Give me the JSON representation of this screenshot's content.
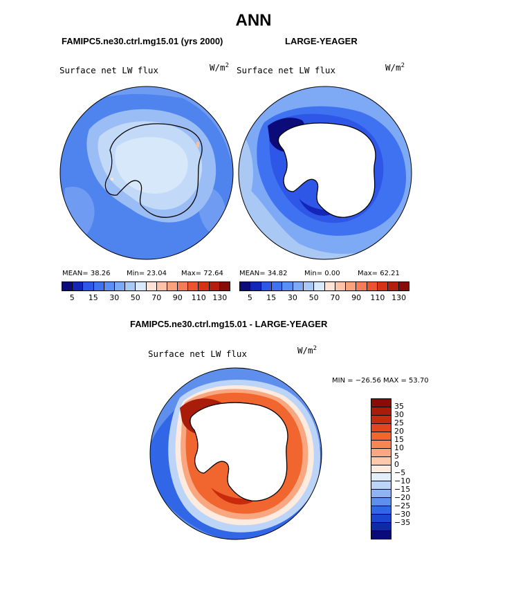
{
  "figure": {
    "title": "ANN",
    "panels": [
      {
        "case": "FAMIPC5.ne30.ctrl.mg15.01 (yrs 2000)",
        "variable": "Surface net LW flux",
        "units": "W/m",
        "units_sup": "2",
        "stats": {
          "mean": "MEAN=  38.26",
          "min": "Min=  23.04",
          "max": "Max=  72.64"
        }
      },
      {
        "case": "LARGE-YEAGER",
        "variable": "Surface net LW flux",
        "units": "W/m",
        "units_sup": "2",
        "stats": {
          "mean": "MEAN=  34.82",
          "min": "Min=   0.00",
          "max": "Max=  62.21"
        }
      }
    ],
    "diff_panel": {
      "case": "FAMIPC5.ne30.ctrl.mg15.01 - LARGE-YEAGER",
      "variable": "Surface net LW flux",
      "units": "W/m",
      "units_sup": "2",
      "minmax": "MIN = −26.56 MAX =  53.70"
    }
  },
  "colorbars": {
    "top_labels": [
      "5",
      "15",
      "30",
      "50",
      "70",
      "90",
      "110",
      "130"
    ],
    "top_colors": [
      "#0b0b7a",
      "#1326b8",
      "#2e57e8",
      "#3f72f0",
      "#5a8ff5",
      "#7ea9f5",
      "#a9c8f4",
      "#d7e9fa",
      "#fde3d5",
      "#fcc3a8",
      "#f9a27c",
      "#f47c56",
      "#ec5430",
      "#d53316",
      "#b41e0d",
      "#880c08"
    ],
    "diff_labels": [
      "35",
      "30",
      "25",
      "20",
      "15",
      "10",
      "5",
      "0",
      "−5",
      "−10",
      "−15",
      "−20",
      "−25",
      "−30",
      "−35"
    ],
    "diff_colors": [
      "#880c08",
      "#a91c0a",
      "#c82a0e",
      "#e2461c",
      "#f1662e",
      "#f68652",
      "#f9a780",
      "#fcc9ad",
      "#fdebe0",
      "#e3eefc",
      "#bcd4f7",
      "#8fb3f2",
      "#5f8fec",
      "#3166e6",
      "#1b46d2",
      "#0f2aa8",
      "#0a0a78"
    ]
  }
}
